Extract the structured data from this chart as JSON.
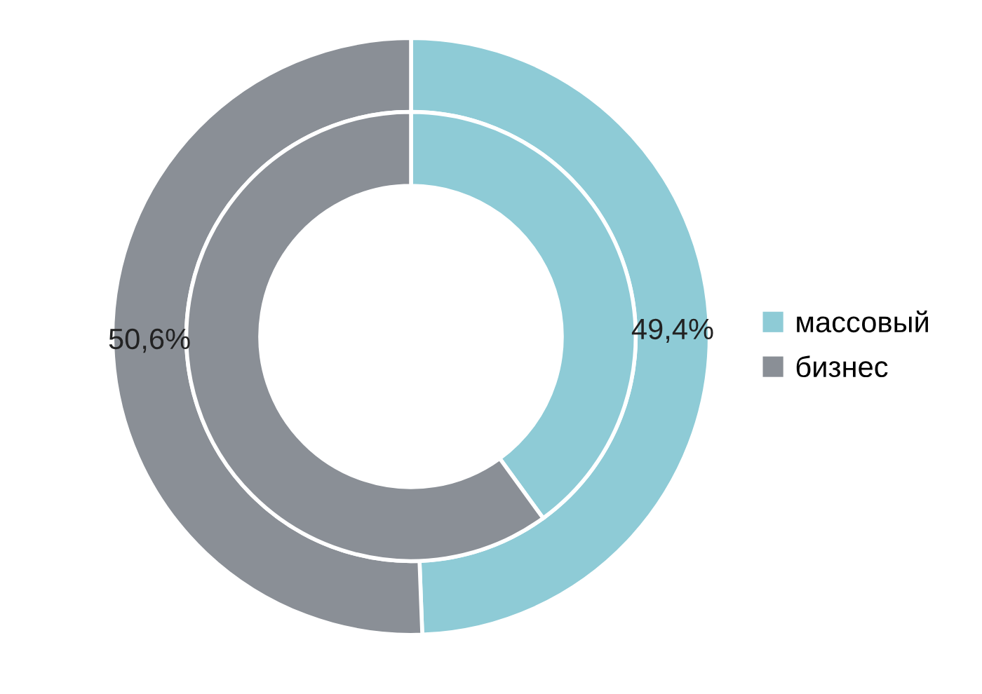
{
  "chart_data": {
    "type": "donut",
    "categories": [
      "массовый",
      "бизнес"
    ],
    "colors": [
      "#8ecbd6",
      "#8a8f96"
    ],
    "series": [
      {
        "values": [
          49.4,
          50.6
        ],
        "value_labels": [
          "49,4%",
          "50,6%"
        ]
      },
      {
        "values": [
          40,
          60
        ]
      }
    ],
    "legend": "right"
  }
}
